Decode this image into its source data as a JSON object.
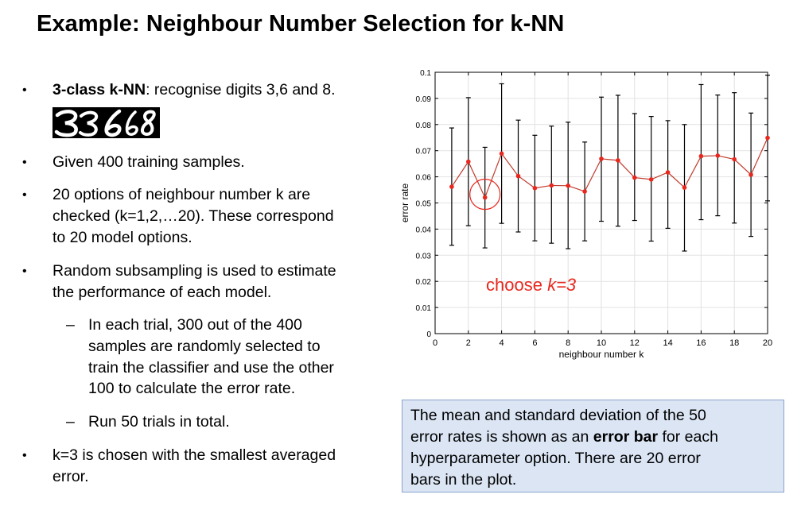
{
  "title": "Example: Neighbour Number Selection for k-NN",
  "bullets": {
    "b1_bold": "3-class k-NN",
    "b1_rest": ": recognise digits 3,6 and 8.",
    "digits_image": "handwritten digits 3, 6, 8",
    "b2": "Given 400 training samples.",
    "b3_l1": "20 options of neighbour number k are",
    "b3_l2": "checked (k=1,2,…20). These correspond",
    "b3_l3": "to 20 model options.",
    "b4_l1": "Random subsampling is used to estimate",
    "b4_l2": "the performance of each model.",
    "s1_l1": "In each trial, 300 out of the 400",
    "s1_l2": "samples are randomly selected to",
    "s1_l3": "train the classifier and use the other",
    "s1_l4": "100 to calculate the error rate.",
    "s2": "Run 50 trials in total.",
    "b5_l1": "k=3 is chosen with the smallest averaged",
    "b5_l2": "error."
  },
  "note": {
    "l1": "The mean and standard deviation of the 50",
    "l2_pre": "error rates is shown as an ",
    "l2_bold": "error bar",
    "l2_post": " for each",
    "l3": "hyperparameter option. There are 20 error",
    "l4": "bars in the plot."
  },
  "colors": {
    "line": "#c0392b",
    "point": "#e8281e",
    "annotation": "#e8281e",
    "errorbar": "#000000",
    "note_bg": "#dbe5f4"
  },
  "chart_data": {
    "type": "line",
    "xlabel": "neighbour number k",
    "ylabel": "error rate",
    "xlim": [
      0,
      20
    ],
    "ylim": [
      0,
      0.1
    ],
    "xticks": [
      "0",
      "2",
      "4",
      "6",
      "8",
      "10",
      "12",
      "14",
      "16",
      "18",
      "20"
    ],
    "yticks": [
      "0",
      "0.01",
      "0.02",
      "0.03",
      "0.04",
      "0.05",
      "0.06",
      "0.07",
      "0.08",
      "0.09",
      "0.1"
    ],
    "grid": true,
    "series": [
      {
        "x": [
          1,
          2,
          3,
          4,
          5,
          6,
          7,
          8,
          9,
          10,
          11,
          12,
          13,
          14,
          15,
          16,
          17,
          18,
          19,
          20
        ],
        "y": [
          0.0562,
          0.0658,
          0.0521,
          0.0689,
          0.0603,
          0.0557,
          0.0567,
          0.0566,
          0.0544,
          0.0669,
          0.0663,
          0.0597,
          0.059,
          0.0617,
          0.0559,
          0.0679,
          0.0681,
          0.0667,
          0.0608,
          0.0749
        ],
        "err_low": [
          0.0338,
          0.0413,
          0.0328,
          0.0422,
          0.0389,
          0.0355,
          0.0346,
          0.0325,
          0.0355,
          0.043,
          0.0411,
          0.0433,
          0.0354,
          0.0403,
          0.0316,
          0.0436,
          0.0451,
          0.0423,
          0.0372,
          0.0508
        ],
        "err_high": [
          0.0787,
          0.0903,
          0.0713,
          0.0956,
          0.0817,
          0.0759,
          0.0794,
          0.0809,
          0.0733,
          0.0905,
          0.0912,
          0.0842,
          0.0831,
          0.0815,
          0.08,
          0.0953,
          0.0913,
          0.0922,
          0.0844,
          0.0989
        ]
      }
    ],
    "annotation": {
      "text_plain": "choose ",
      "text_italic": "k=3",
      "x": 3,
      "y": 0.0521
    }
  }
}
